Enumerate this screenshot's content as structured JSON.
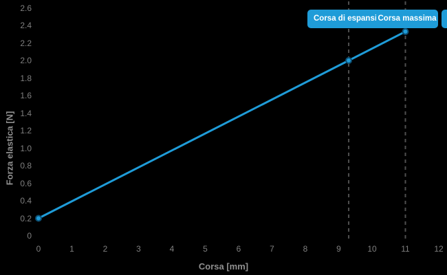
{
  "colors": {
    "background": "#000000",
    "accent_blue": "#1f9cd8",
    "marker_stroke": "#0c4f73",
    "dashed_line": "#4f4f4f",
    "tick_text": "#7f7f7f",
    "axis_title_text": "#8f8f8f",
    "badge_text": "#ffffff"
  },
  "chart_data": {
    "type": "line",
    "title": "",
    "xlabel": "Corsa [mm]",
    "ylabel": "Forza elastica [N]",
    "xlim": [
      0,
      12
    ],
    "ylim": [
      0,
      2.6
    ],
    "grid": false,
    "legend": "none",
    "series": [
      {
        "name": "Forza elastica",
        "x": [
          0,
          9.3,
          11
        ],
        "y": [
          0.2,
          2.0,
          2.33
        ],
        "color": "#1f9cd8",
        "markers": true
      }
    ],
    "x_tick_labels": [
      "0",
      "1",
      "2",
      "3",
      "4",
      "5",
      "6",
      "7",
      "8",
      "9",
      "10",
      "11",
      "12"
    ],
    "y_tick_labels": [
      "0",
      "0.2",
      "0.4",
      "0.6",
      "0.8",
      "1.0",
      "1.2",
      "1.4",
      "1.6",
      "1.8",
      "2.0",
      "2.2",
      "2.4",
      "2.6"
    ],
    "annotations": [
      {
        "x": 9.3,
        "label": "Corsa di espansione",
        "style": "dashed-vertical-line-with-badge"
      },
      {
        "x": 11,
        "label": "Corsa massima",
        "style": "dashed-vertical-line-with-badge"
      }
    ],
    "clipped_badge_at_right_edge": {
      "label": ""
    }
  }
}
